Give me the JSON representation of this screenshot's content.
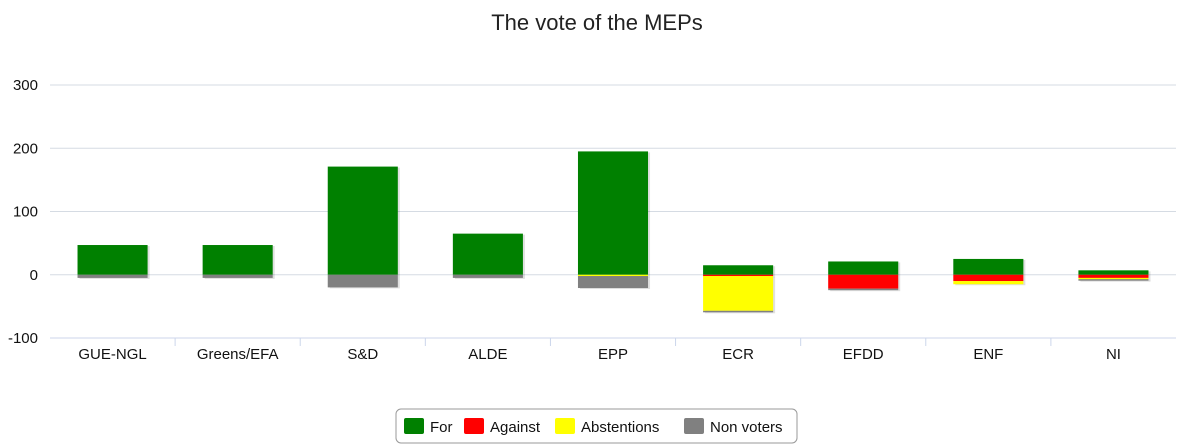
{
  "chart_data": {
    "type": "bar",
    "stacked": true,
    "title": "The vote of the MEPs",
    "xlabel": "",
    "ylabel": "",
    "ylim": [
      -100,
      300
    ],
    "yticks": [
      300,
      200,
      100,
      0,
      -100
    ],
    "grid": true,
    "legend_position": "bottom-center",
    "categories": [
      "GUE-NGL",
      "Greens/EFA",
      "S&D",
      "ALDE",
      "EPP",
      "ECR",
      "EFDD",
      "ENF",
      "NI"
    ],
    "series": [
      {
        "name": "For",
        "color": "#008000",
        "values": [
          47,
          47,
          171,
          65,
          195,
          15,
          21,
          25,
          7
        ]
      },
      {
        "name": "Against",
        "color": "#ff0000",
        "values": [
          0,
          0,
          0,
          0,
          0,
          -2,
          -22,
          -10,
          -5
        ]
      },
      {
        "name": "Abstentions",
        "color": "#ffff00",
        "values": [
          0,
          0,
          0,
          0,
          -2,
          -55,
          0,
          -5,
          -2
        ]
      },
      {
        "name": "Non voters",
        "color": "#808080",
        "values": [
          -5,
          -5,
          -20,
          -5,
          -19,
          -2,
          -2,
          0,
          -2
        ]
      }
    ]
  }
}
